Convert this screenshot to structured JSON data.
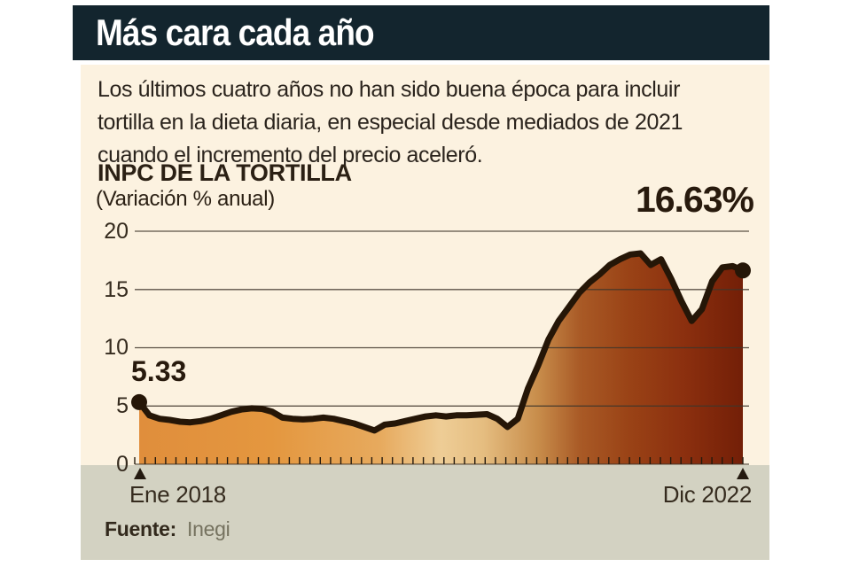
{
  "header": {
    "title": "Más cara cada año",
    "bg_color": "#13252e",
    "text_color": "#ffffff"
  },
  "intro": {
    "lines": [
      "Los últimos cuatro años no han sido buena época para incluir",
      "tortilla en la dieta diaria, en especial desde mediados de 2021",
      "cuando el incremento del precio aceleró."
    ]
  },
  "chart": {
    "title": "INPC DE LA TORTILLA",
    "subtitle": "(Variación % anual)",
    "start_annotation": "5.33",
    "end_annotation": "16.63%",
    "x_axis": {
      "start_label": "Ene 2018",
      "end_label": "Dic 2022"
    },
    "y_axis": {
      "labels": [
        "20",
        "15",
        "10",
        "5",
        "0"
      ]
    }
  },
  "chart_data": {
    "type": "area",
    "title": "INPC DE LA TORTILLA",
    "subtitle": "(Variación % anual)",
    "x_start": "Ene 2018",
    "x_end": "Dic 2022",
    "x_frequency": "monthly",
    "ylim": [
      0,
      20
    ],
    "y_ticks": [
      0,
      5,
      10,
      15,
      20
    ],
    "grid": true,
    "first_point_label": 5.33,
    "last_point_label": 16.63,
    "values": [
      5.33,
      4.2,
      3.9,
      3.8,
      3.65,
      3.6,
      3.7,
      3.9,
      4.2,
      4.5,
      4.7,
      4.8,
      4.75,
      4.5,
      4.0,
      3.9,
      3.85,
      3.9,
      4.0,
      3.9,
      3.7,
      3.5,
      3.2,
      2.9,
      3.4,
      3.5,
      3.7,
      3.9,
      4.1,
      4.2,
      4.1,
      4.2,
      4.2,
      4.25,
      4.3,
      3.9,
      3.2,
      3.9,
      6.5,
      8.5,
      10.7,
      12.3,
      13.5,
      14.7,
      15.6,
      16.3,
      17.1,
      17.6,
      18.0,
      18.1,
      17.1,
      17.6,
      15.9,
      14.0,
      12.3,
      13.3,
      15.7,
      16.9,
      17.0,
      16.63
    ],
    "line_color": "#251607",
    "gridline_color": "#3f362a",
    "gradient_stops": [
      {
        "offset": 0.0,
        "color": "#e08e3c"
      },
      {
        "offset": 0.22,
        "color": "#e4973f"
      },
      {
        "offset": 0.4,
        "color": "#e7aa5e"
      },
      {
        "offset": 0.5,
        "color": "#eecd96"
      },
      {
        "offset": 0.57,
        "color": "#e5bd80"
      },
      {
        "offset": 0.66,
        "color": "#c88d4b"
      },
      {
        "offset": 0.73,
        "color": "#a95a26"
      },
      {
        "offset": 0.81,
        "color": "#9a4316"
      },
      {
        "offset": 0.9,
        "color": "#8c300f"
      },
      {
        "offset": 1.0,
        "color": "#731f07"
      }
    ]
  },
  "footer": {
    "source_label": "Fuente:",
    "source_value": "Inegi"
  }
}
